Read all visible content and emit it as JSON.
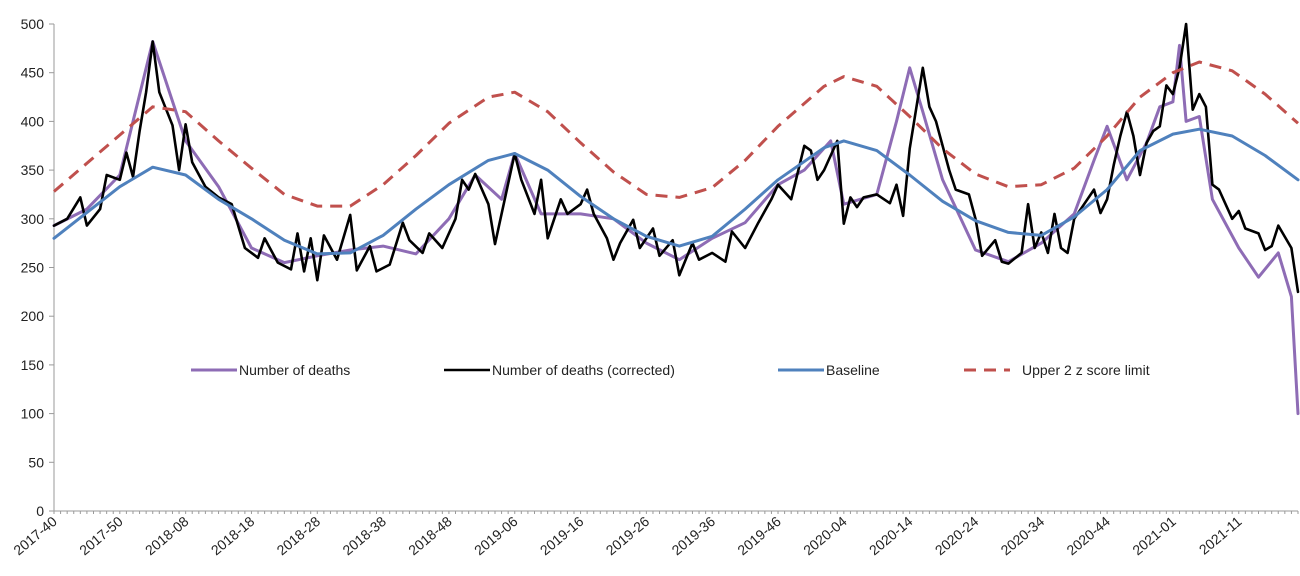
{
  "chart_data": {
    "type": "line",
    "title": "",
    "xlabel": "",
    "ylabel": "",
    "ylim": [
      0,
      500
    ],
    "yticks": [
      0,
      50,
      100,
      150,
      200,
      250,
      300,
      350,
      400,
      450,
      500
    ],
    "x_range": [
      "2017-40",
      "2021-20"
    ],
    "xtick_labels": [
      "2017-40",
      "2017-50",
      "2018-08",
      "2018-18",
      "2018-28",
      "2018-38",
      "2018-48",
      "2019-06",
      "2019-16",
      "2019-26",
      "2019-36",
      "2019-46",
      "2020-04",
      "2020-14",
      "2020-24",
      "2020-34",
      "2020-44",
      "2021-01",
      "2021-11"
    ],
    "grid": false,
    "legend_position": "middle",
    "series": [
      {
        "name": "Number of deaths",
        "color": "#8e6cb5",
        "style": "solid",
        "points": [
          [
            "2017-40",
            293
          ],
          [
            "2017-45",
            310
          ],
          [
            "2017-50",
            345
          ],
          [
            "2018-03",
            482
          ],
          [
            "2018-08",
            380
          ],
          [
            "2018-13",
            333
          ],
          [
            "2018-18",
            270
          ],
          [
            "2018-23",
            255
          ],
          [
            "2018-28",
            262
          ],
          [
            "2018-33",
            268
          ],
          [
            "2018-38",
            272
          ],
          [
            "2018-43",
            264
          ],
          [
            "2018-48",
            300
          ],
          [
            "2018-52",
            345
          ],
          [
            "2019-04",
            320
          ],
          [
            "2019-06",
            367
          ],
          [
            "2019-10",
            305
          ],
          [
            "2019-16",
            305
          ],
          [
            "2019-21",
            300
          ],
          [
            "2019-26",
            275
          ],
          [
            "2019-31",
            258
          ],
          [
            "2019-36",
            280
          ],
          [
            "2019-41",
            296
          ],
          [
            "2019-46",
            335
          ],
          [
            "2019-50",
            350
          ],
          [
            "2020-02",
            380
          ],
          [
            "2020-04",
            315
          ],
          [
            "2020-09",
            325
          ],
          [
            "2020-12",
            400
          ],
          [
            "2020-14",
            455
          ],
          [
            "2020-16",
            410
          ],
          [
            "2020-19",
            340
          ],
          [
            "2020-24",
            268
          ],
          [
            "2020-29",
            256
          ],
          [
            "2020-34",
            275
          ],
          [
            "2020-39",
            305
          ],
          [
            "2020-42",
            360
          ],
          [
            "2020-44",
            395
          ],
          [
            "2020-47",
            340
          ],
          [
            "2020-50",
            378
          ],
          [
            "2020-52",
            415
          ],
          [
            "2021-01",
            420
          ],
          [
            "2021-02",
            478
          ],
          [
            "2021-03",
            400
          ],
          [
            "2021-05",
            405
          ],
          [
            "2021-07",
            320
          ],
          [
            "2021-11",
            270
          ],
          [
            "2021-14",
            240
          ],
          [
            "2021-17",
            265
          ],
          [
            "2021-19",
            220
          ],
          [
            "2021-20",
            100
          ]
        ]
      },
      {
        "name": "Number of deaths (corrected)",
        "color": "#000000",
        "style": "solid",
        "points": [
          [
            "2017-40",
            293
          ],
          [
            "2017-42",
            300
          ],
          [
            "2017-44",
            322
          ],
          [
            "2017-45",
            293
          ],
          [
            "2017-47",
            310
          ],
          [
            "2017-48",
            345
          ],
          [
            "2017-50",
            340
          ],
          [
            "2017-51",
            368
          ],
          [
            "2017-52",
            343
          ],
          [
            "2018-01",
            390
          ],
          [
            "2018-02",
            430
          ],
          [
            "2018-03",
            482
          ],
          [
            "2018-04",
            430
          ],
          [
            "2018-06",
            396
          ],
          [
            "2018-07",
            350
          ],
          [
            "2018-08",
            397
          ],
          [
            "2018-09",
            358
          ],
          [
            "2018-11",
            333
          ],
          [
            "2018-13",
            322
          ],
          [
            "2018-15",
            315
          ],
          [
            "2018-17",
            270
          ],
          [
            "2018-19",
            260
          ],
          [
            "2018-20",
            280
          ],
          [
            "2018-22",
            255
          ],
          [
            "2018-24",
            248
          ],
          [
            "2018-25",
            285
          ],
          [
            "2018-26",
            246
          ],
          [
            "2018-27",
            280
          ],
          [
            "2018-28",
            237
          ],
          [
            "2018-29",
            283
          ],
          [
            "2018-31",
            258
          ],
          [
            "2018-33",
            304
          ],
          [
            "2018-34",
            247
          ],
          [
            "2018-36",
            272
          ],
          [
            "2018-37",
            246
          ],
          [
            "2018-39",
            253
          ],
          [
            "2018-41",
            296
          ],
          [
            "2018-42",
            278
          ],
          [
            "2018-44",
            265
          ],
          [
            "2018-45",
            285
          ],
          [
            "2018-47",
            270
          ],
          [
            "2018-49",
            300
          ],
          [
            "2018-50",
            340
          ],
          [
            "2018-51",
            330
          ],
          [
            "2018-52",
            346
          ],
          [
            "2019-02",
            315
          ],
          [
            "2019-03",
            274
          ],
          [
            "2019-06",
            367
          ],
          [
            "2019-07",
            340
          ],
          [
            "2019-09",
            305
          ],
          [
            "2019-10",
            340
          ],
          [
            "2019-11",
            280
          ],
          [
            "2019-13",
            320
          ],
          [
            "2019-14",
            305
          ],
          [
            "2019-16",
            315
          ],
          [
            "2019-17",
            330
          ],
          [
            "2019-18",
            305
          ],
          [
            "2019-20",
            280
          ],
          [
            "2019-21",
            258
          ],
          [
            "2019-22",
            275
          ],
          [
            "2019-24",
            299
          ],
          [
            "2019-25",
            270
          ],
          [
            "2019-27",
            290
          ],
          [
            "2019-28",
            262
          ],
          [
            "2019-30",
            278
          ],
          [
            "2019-31",
            242
          ],
          [
            "2019-33",
            275
          ],
          [
            "2019-34",
            258
          ],
          [
            "2019-36",
            265
          ],
          [
            "2019-38",
            256
          ],
          [
            "2019-39",
            287
          ],
          [
            "2019-41",
            270
          ],
          [
            "2019-43",
            296
          ],
          [
            "2019-45",
            320
          ],
          [
            "2019-46",
            335
          ],
          [
            "2019-48",
            320
          ],
          [
            "2019-50",
            375
          ],
          [
            "2019-51",
            370
          ],
          [
            "2019-52",
            340
          ],
          [
            "2020-01",
            350
          ],
          [
            "2020-03",
            380
          ],
          [
            "2020-04",
            295
          ],
          [
            "2020-05",
            322
          ],
          [
            "2020-06",
            312
          ],
          [
            "2020-07",
            322
          ],
          [
            "2020-09",
            325
          ],
          [
            "2020-11",
            316
          ],
          [
            "2020-12",
            335
          ],
          [
            "2020-13",
            303
          ],
          [
            "2020-14",
            372
          ],
          [
            "2020-16",
            455
          ],
          [
            "2020-17",
            415
          ],
          [
            "2020-18",
            400
          ],
          [
            "2020-20",
            350
          ],
          [
            "2020-21",
            330
          ],
          [
            "2020-23",
            325
          ],
          [
            "2020-24",
            300
          ],
          [
            "2020-25",
            262
          ],
          [
            "2020-27",
            278
          ],
          [
            "2020-28",
            256
          ],
          [
            "2020-29",
            254
          ],
          [
            "2020-31",
            265
          ],
          [
            "2020-32",
            315
          ],
          [
            "2020-33",
            270
          ],
          [
            "2020-34",
            286
          ],
          [
            "2020-35",
            265
          ],
          [
            "2020-36",
            305
          ],
          [
            "2020-37",
            270
          ],
          [
            "2020-38",
            265
          ],
          [
            "2020-39",
            300
          ],
          [
            "2020-41",
            320
          ],
          [
            "2020-42",
            330
          ],
          [
            "2020-43",
            306
          ],
          [
            "2020-44",
            320
          ],
          [
            "2020-45",
            355
          ],
          [
            "2020-46",
            385
          ],
          [
            "2020-47",
            410
          ],
          [
            "2020-48",
            385
          ],
          [
            "2020-49",
            345
          ],
          [
            "2020-50",
            378
          ],
          [
            "2020-51",
            390
          ],
          [
            "2020-52",
            395
          ],
          [
            "2020-53",
            437
          ],
          [
            "2021-01",
            428
          ],
          [
            "2021-02",
            455
          ],
          [
            "2021-03",
            500
          ],
          [
            "2021-04",
            412
          ],
          [
            "2021-05",
            428
          ],
          [
            "2021-06",
            415
          ],
          [
            "2021-07",
            335
          ],
          [
            "2021-08",
            330
          ],
          [
            "2021-10",
            300
          ],
          [
            "2021-11",
            308
          ],
          [
            "2021-12",
            290
          ],
          [
            "2021-14",
            285
          ],
          [
            "2021-15",
            268
          ],
          [
            "2021-16",
            272
          ],
          [
            "2021-17",
            293
          ],
          [
            "2021-19",
            270
          ],
          [
            "2021-20",
            225
          ]
        ]
      },
      {
        "name": "Baseline",
        "color": "#4f81bd",
        "style": "solid",
        "points": [
          [
            "2017-40",
            280
          ],
          [
            "2017-50",
            333
          ],
          [
            "2018-03",
            353
          ],
          [
            "2018-08",
            345
          ],
          [
            "2018-13",
            320
          ],
          [
            "2018-18",
            300
          ],
          [
            "2018-23",
            278
          ],
          [
            "2018-28",
            264
          ],
          [
            "2018-33",
            265
          ],
          [
            "2018-38",
            283
          ],
          [
            "2018-43",
            310
          ],
          [
            "2018-48",
            335
          ],
          [
            "2019-02",
            360
          ],
          [
            "2019-06",
            367
          ],
          [
            "2019-11",
            350
          ],
          [
            "2019-16",
            323
          ],
          [
            "2019-21",
            300
          ],
          [
            "2019-26",
            282
          ],
          [
            "2019-31",
            272
          ],
          [
            "2019-36",
            282
          ],
          [
            "2019-41",
            310
          ],
          [
            "2019-46",
            340
          ],
          [
            "2020-01",
            373
          ],
          [
            "2020-04",
            380
          ],
          [
            "2020-09",
            370
          ],
          [
            "2020-14",
            345
          ],
          [
            "2020-19",
            318
          ],
          [
            "2020-24",
            298
          ],
          [
            "2020-29",
            286
          ],
          [
            "2020-34",
            283
          ],
          [
            "2020-39",
            302
          ],
          [
            "2020-44",
            330
          ],
          [
            "2020-49",
            370
          ],
          [
            "2021-01",
            387
          ],
          [
            "2021-05",
            392
          ],
          [
            "2021-10",
            385
          ],
          [
            "2021-15",
            365
          ],
          [
            "2021-20",
            340
          ]
        ]
      },
      {
        "name": "Upper 2 z score limit",
        "color": "#c0504d",
        "style": "dashed",
        "points": [
          [
            "2017-40",
            328
          ],
          [
            "2017-50",
            386
          ],
          [
            "2018-03",
            415
          ],
          [
            "2018-08",
            410
          ],
          [
            "2018-13",
            380
          ],
          [
            "2018-18",
            352
          ],
          [
            "2018-23",
            325
          ],
          [
            "2018-28",
            313
          ],
          [
            "2018-33",
            313
          ],
          [
            "2018-38",
            335
          ],
          [
            "2018-43",
            365
          ],
          [
            "2018-48",
            398
          ],
          [
            "2019-02",
            425
          ],
          [
            "2019-06",
            430
          ],
          [
            "2019-11",
            410
          ],
          [
            "2019-16",
            378
          ],
          [
            "2019-21",
            348
          ],
          [
            "2019-26",
            325
          ],
          [
            "2019-31",
            322
          ],
          [
            "2019-36",
            332
          ],
          [
            "2019-41",
            360
          ],
          [
            "2019-46",
            395
          ],
          [
            "2020-01",
            436
          ],
          [
            "2020-04",
            446
          ],
          [
            "2020-09",
            436
          ],
          [
            "2020-14",
            405
          ],
          [
            "2020-19",
            372
          ],
          [
            "2020-24",
            346
          ],
          [
            "2020-29",
            333
          ],
          [
            "2020-34",
            335
          ],
          [
            "2020-39",
            352
          ],
          [
            "2020-44",
            385
          ],
          [
            "2020-49",
            425
          ],
          [
            "2021-01",
            450
          ],
          [
            "2021-05",
            461
          ],
          [
            "2021-10",
            452
          ],
          [
            "2021-15",
            428
          ],
          [
            "2021-20",
            398
          ]
        ]
      }
    ]
  }
}
